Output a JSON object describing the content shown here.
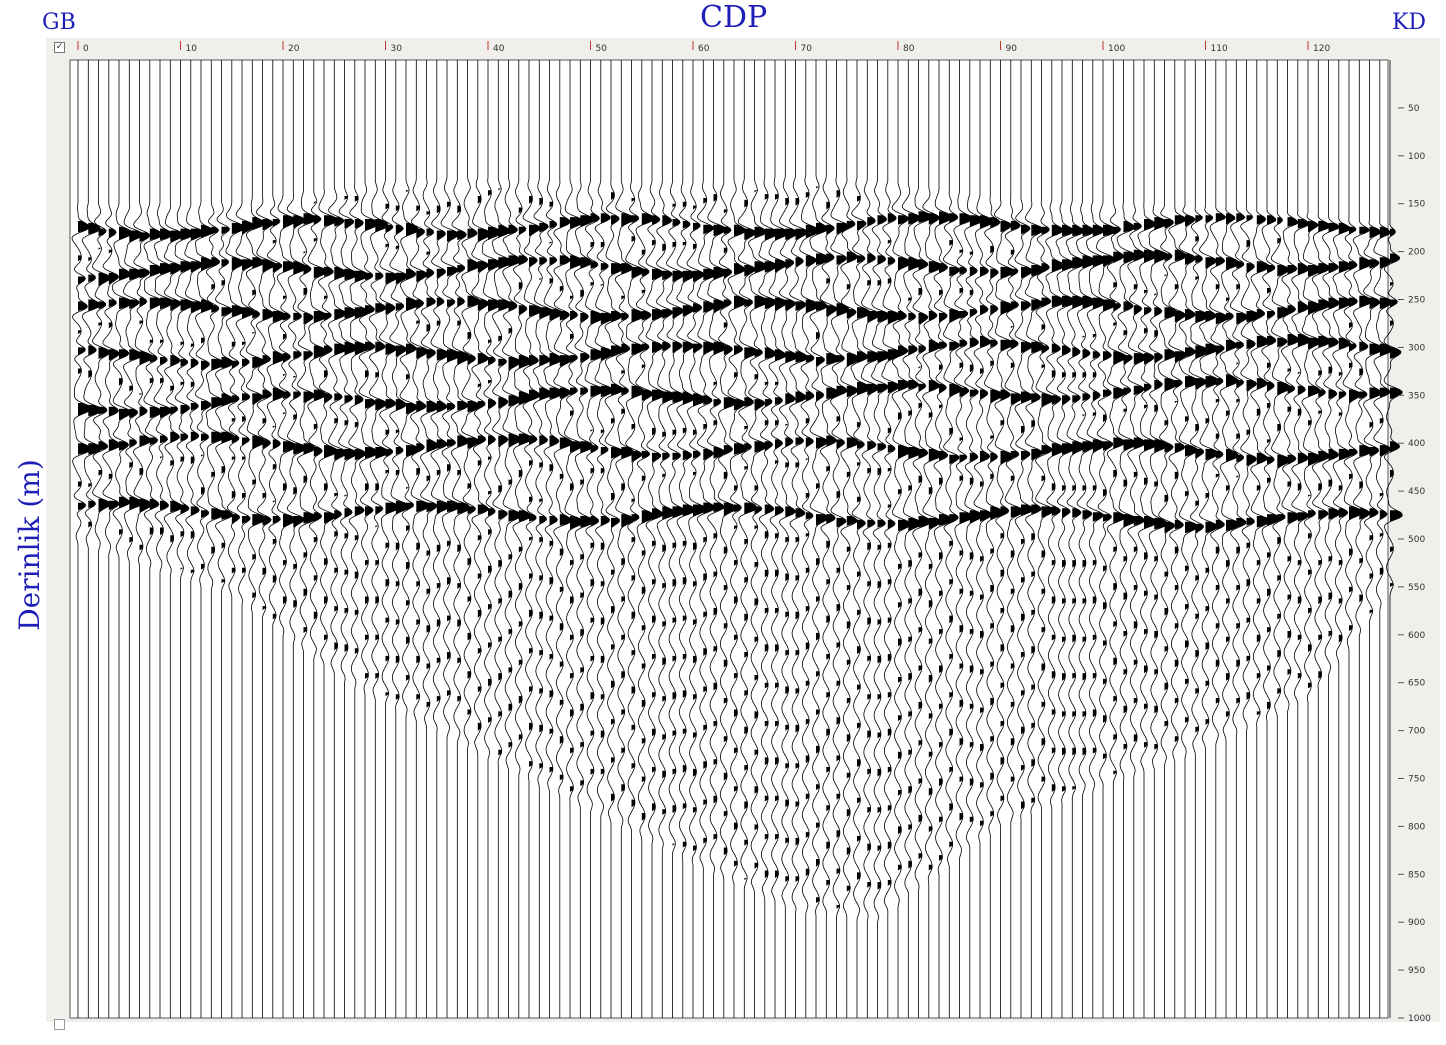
{
  "header": {
    "title": "CDP",
    "left_label": "GB",
    "right_label": "KD",
    "ylabel": "Derinlik (m)",
    "checkbox_mark": "✓"
  },
  "colors": {
    "label_blue": "#1f1fb8",
    "tick_red": "#c0392b",
    "frame": "#f0efeb",
    "trace": "#000000"
  },
  "chart_data": {
    "type": "seismic wiggle section",
    "title": "CDP",
    "xlabel": "",
    "ylabel": "Derinlik (m)",
    "x_tick_values": [
      0,
      10,
      20,
      30,
      40,
      50,
      60,
      70,
      80,
      90,
      100,
      110,
      120
    ],
    "x_tick_labels": [
      "0",
      "10",
      "20",
      "30",
      "40",
      "50",
      "60",
      "70",
      "80",
      "90",
      "100",
      "110",
      "120"
    ],
    "y_tick_values": [
      50,
      100,
      150,
      200,
      250,
      300,
      350,
      400,
      450,
      500,
      550,
      600,
      650,
      700,
      750,
      800,
      850,
      900,
      950,
      1000
    ],
    "y_tick_labels": [
      "50",
      "100",
      "150",
      "200",
      "250",
      "300",
      "350",
      "400",
      "450",
      "500",
      "550",
      "600",
      "650",
      "700",
      "750",
      "800",
      "850",
      "900",
      "950",
      "1000"
    ],
    "xlim": [
      0,
      128
    ],
    "ylim": [
      0,
      1000
    ],
    "trace_count": 129,
    "trace_spacing_cdp": 1,
    "data_window_top_cdp": [
      0,
      15,
      30,
      38,
      45,
      60,
      65,
      72,
      78,
      90,
      105,
      120,
      128
    ],
    "data_window_top_depth": [
      150,
      148,
      125,
      122,
      125,
      128,
      125,
      120,
      125,
      145,
      150,
      160,
      170
    ],
    "data_window_bottom_cdp": [
      0,
      15,
      26,
      40,
      60,
      70,
      78,
      90,
      100,
      110,
      120,
      128
    ],
    "data_window_bottom_depth": [
      505,
      560,
      650,
      730,
      840,
      890,
      900,
      800,
      760,
      720,
      670,
      560
    ],
    "reflector_depths_at_cdp0": [
      175,
      220,
      260,
      310,
      360,
      400,
      470
    ],
    "reflector_depths_at_cdp128": [
      170,
      210,
      260,
      300,
      340,
      410,
      480
    ]
  }
}
